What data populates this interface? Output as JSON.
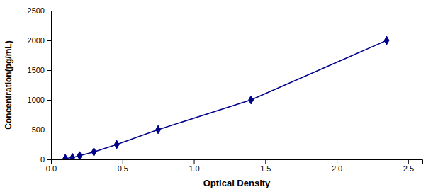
{
  "chart_data": {
    "type": "line",
    "x": [
      0.1,
      0.15,
      0.2,
      0.3,
      0.46,
      0.75,
      1.4,
      2.35
    ],
    "values": [
      15.6,
      31.2,
      62.5,
      125,
      250,
      500,
      1000,
      2000
    ],
    "color": "#00008B",
    "marker": "diamond",
    "xlabel": "Optical Density",
    "ylabel": "Concentration(pg/mL)",
    "xlim": [
      0,
      2.6
    ],
    "ylim": [
      0,
      2500
    ],
    "xticks": [
      {
        "value": 0,
        "label": "0.0"
      },
      0.5,
      {
        "value": 1,
        "label": "1.0"
      },
      1.5,
      {
        "value": 2,
        "label": "2.0"
      },
      2.5
    ],
    "yticks": [
      0,
      500,
      1000,
      1500,
      2000,
      2500
    ],
    "grid": false
  }
}
